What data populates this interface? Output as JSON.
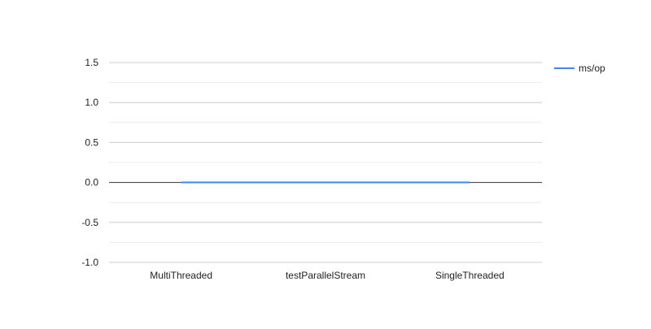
{
  "chart_data": {
    "type": "line",
    "categories": [
      "MultiThreaded",
      "testParallelStream",
      "SingleThreaded"
    ],
    "series": [
      {
        "name": "ms/op",
        "values": [
          0.001,
          0.001,
          0.001
        ],
        "color": "#4285f4"
      }
    ],
    "ylim": [
      -1.0,
      1.5
    ],
    "yticks": [
      "1.5",
      "1.0",
      "0.5",
      "0.0",
      "-0.5",
      "-1.0"
    ],
    "ytick_values": [
      1.5,
      1.0,
      0.5,
      0.0,
      -0.5,
      -1.0
    ],
    "minor_gridlines": true,
    "legend": {
      "position": "right",
      "label": "ms/op"
    },
    "grid": true,
    "colors": {
      "series": "#4285f4",
      "major_grid": "#cccccc",
      "minor_grid": "#ebebeb",
      "baseline": "#333333",
      "text": "#222222"
    }
  }
}
